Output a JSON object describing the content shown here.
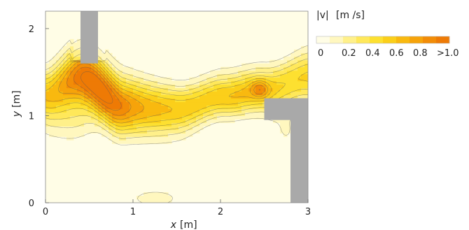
{
  "chart_data": {
    "type": "heatmap",
    "xlabel": "x",
    "xunit": "[m]",
    "ylabel": "y",
    "yunit": "[m]",
    "xlim": [
      0,
      3
    ],
    "ylim": [
      0,
      2.2
    ],
    "xticks": [
      0,
      1,
      2,
      3
    ],
    "yticks": [
      0,
      1,
      2
    ],
    "colorbar": {
      "title_symbol": "|v|",
      "title_unit": "[m /s]",
      "levels": [
        0,
        0.1,
        0.2,
        0.3,
        0.4,
        0.5,
        0.6,
        0.7,
        0.8,
        0.9,
        1.0
      ],
      "tick_values": [
        0,
        0.2,
        0.4,
        0.6,
        0.8,
        1.0
      ],
      "tick_labels": [
        "0",
        "0.2",
        "0.4",
        "0.6",
        "0.8",
        ">1.0"
      ],
      "colors": [
        "#fffde6",
        "#fff7bf",
        "#fff08a",
        "#ffe85a",
        "#fde030",
        "#fbcf1a",
        "#f9b90f",
        "#f6a30a",
        "#f28c07",
        "#ee7a05"
      ]
    },
    "obstacles": [
      {
        "name": "top-left-wall",
        "x": [
          0.4,
          0.6
        ],
        "y": [
          1.6,
          2.2
        ]
      },
      {
        "name": "right-step-horizontal",
        "x": [
          2.5,
          3.0
        ],
        "y": [
          0.95,
          1.2
        ]
      },
      {
        "name": "right-step-vertical",
        "x": [
          2.8,
          3.0
        ],
        "y": [
          0.0,
          1.2
        ]
      }
    ],
    "jet": {
      "path": [
        [
          0,
          1.25
        ],
        [
          0.4,
          1.45
        ],
        [
          0.9,
          1.1
        ],
        [
          1.5,
          1.08
        ],
        [
          2.05,
          1.22
        ],
        [
          2.5,
          1.3
        ],
        [
          3.0,
          1.45
        ]
      ],
      "peak_speed": 1.0
    }
  }
}
